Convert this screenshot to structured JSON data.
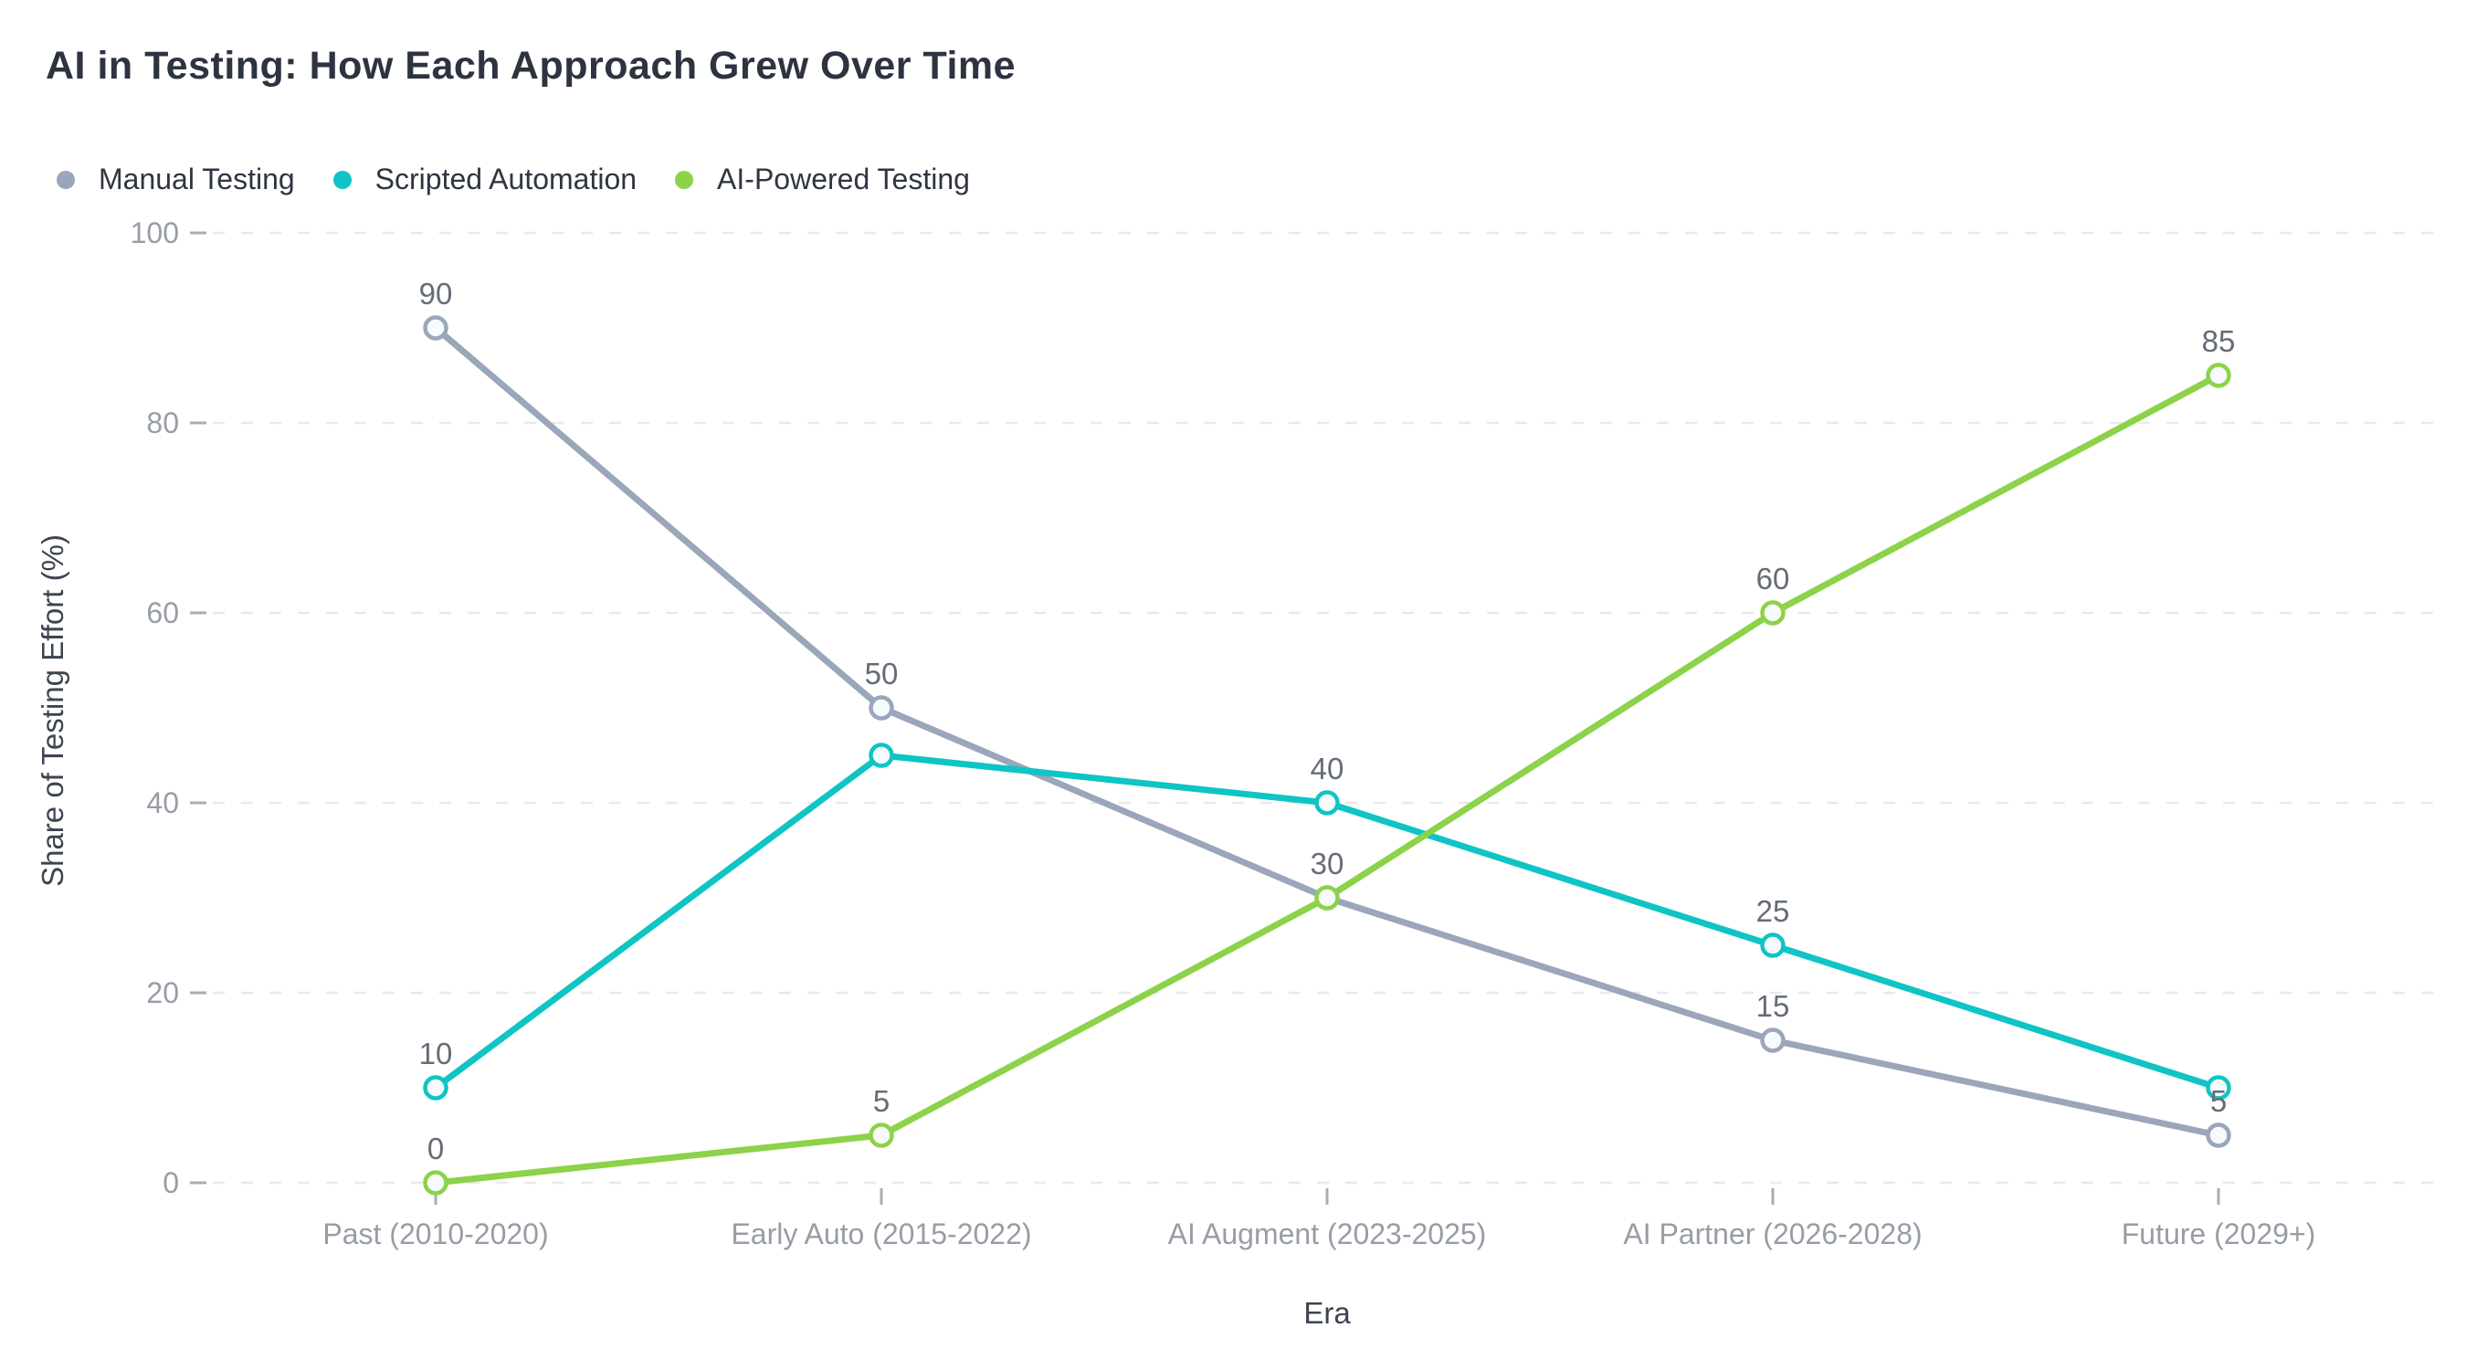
{
  "title": "AI in Testing: How Each Approach Grew Over Time",
  "chart_data": {
    "type": "line",
    "categories": [
      "Past (2010-2020)",
      "Early Auto (2015-2022)",
      "AI Augment (2023-2025)",
      "AI Partner (2026-2028)",
      "Future (2029+)"
    ],
    "series": [
      {
        "name": "Manual Testing",
        "color": "#9aa6ba",
        "values": [
          90,
          50,
          30,
          15,
          5
        ],
        "visible_labels": [
          90,
          50,
          null,
          15,
          5
        ]
      },
      {
        "name": "Scripted Automation",
        "color": "#0fc4c4",
        "values": [
          10,
          45,
          40,
          25,
          10
        ],
        "visible_labels": [
          10,
          null,
          40,
          25,
          null
        ]
      },
      {
        "name": "AI-Powered Testing",
        "color": "#8cd24a",
        "values": [
          0,
          5,
          30,
          60,
          85
        ],
        "visible_labels": [
          0,
          5,
          30,
          60,
          85
        ]
      }
    ],
    "xlabel": "Era",
    "ylabel": "Share of Testing Effort (%)",
    "ylim": [
      0,
      100
    ],
    "y_ticks": [
      0,
      20,
      40,
      60,
      80,
      100
    ],
    "grid": "horizontal-dashed",
    "legend_position": "top-left",
    "marker": "hollow-circle"
  },
  "colors": {
    "background": "#ffffff",
    "title_text": "#2d3340",
    "legend_text": "#2f3542",
    "axis_title_text": "#3d4451",
    "tick_label": "#979da7",
    "tick_mark": "#a8adb6",
    "grid_line": "#e8e9eb",
    "data_label": "#656c77",
    "marker_fill": "#f8fbfd"
  }
}
